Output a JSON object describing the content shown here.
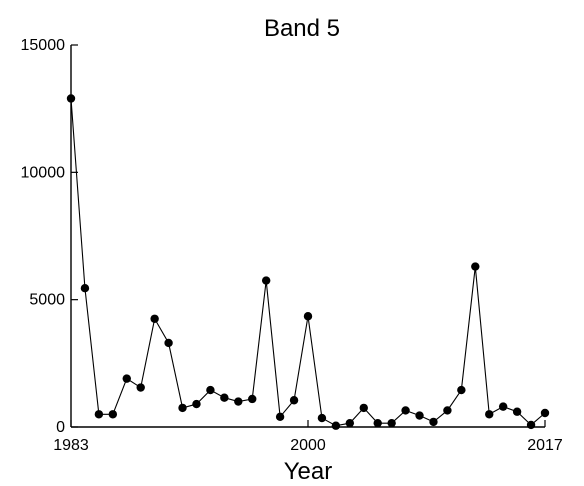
{
  "chart_data": {
    "type": "line",
    "title": "Band 5",
    "xlabel": "Year",
    "ylabel": "",
    "xlim": [
      1983,
      2017
    ],
    "ylim": [
      0,
      15000
    ],
    "x_ticks": [
      1983,
      2000,
      2017
    ],
    "y_ticks": [
      0,
      5000,
      10000,
      15000
    ],
    "grid": false,
    "series": [
      {
        "values": [
          [
            1983,
            12900
          ],
          [
            1984,
            5450
          ],
          [
            1985,
            500
          ],
          [
            1986,
            500
          ],
          [
            1987,
            1900
          ],
          [
            1988,
            1550
          ],
          [
            1989,
            4250
          ],
          [
            1990,
            3300
          ],
          [
            1991,
            750
          ],
          [
            1992,
            900
          ],
          [
            1993,
            1450
          ],
          [
            1994,
            1150
          ],
          [
            1995,
            1000
          ],
          [
            1996,
            1100
          ],
          [
            1997,
            5750
          ],
          [
            1998,
            400
          ],
          [
            1999,
            1050
          ],
          [
            2000,
            4350
          ],
          [
            2001,
            350
          ],
          [
            2002,
            50
          ],
          [
            2003,
            150
          ],
          [
            2004,
            750
          ],
          [
            2005,
            150
          ],
          [
            2006,
            150
          ],
          [
            2007,
            650
          ],
          [
            2008,
            450
          ],
          [
            2009,
            200
          ],
          [
            2010,
            650
          ],
          [
            2011,
            1450
          ],
          [
            2012,
            6300
          ],
          [
            2013,
            500
          ],
          [
            2014,
            800
          ],
          [
            2015,
            600
          ],
          [
            2016,
            80
          ],
          [
            2017,
            550
          ]
        ]
      }
    ]
  }
}
